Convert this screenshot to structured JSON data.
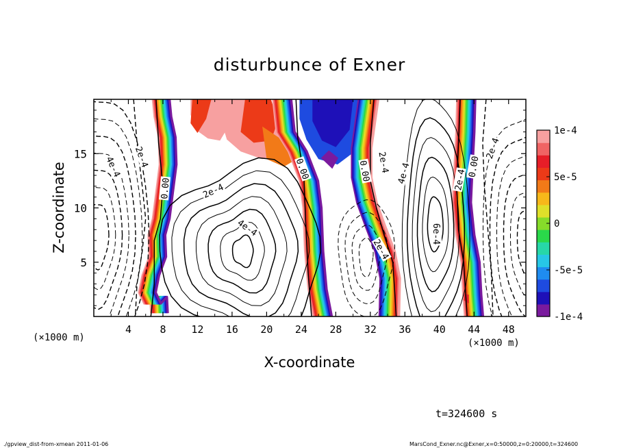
{
  "chart_data": {
    "type": "heatmap",
    "title": "disturbunce of Exner",
    "xlabel": "X-coordinate",
    "ylabel": "Z-coordinate",
    "x_unit_left": "(×1000 m)",
    "x_unit_right": "(×1000 m)",
    "xlim": [
      0,
      50
    ],
    "ylim": [
      0,
      20
    ],
    "x_ticks": [
      4,
      8,
      12,
      16,
      20,
      24,
      28,
      32,
      36,
      40,
      44,
      48
    ],
    "y_ticks": [
      5,
      10,
      15
    ],
    "colorbar": {
      "vmin": -0.0001,
      "vmax": 0.0001,
      "tick_values": [
        0.0001,
        5e-05,
        0,
        -5e-05,
        -0.0001
      ],
      "tick_labels": [
        "1e-4",
        "5e-5",
        "0",
        "-5e-5",
        "-1e-4"
      ],
      "colors": [
        "#7a1a9e",
        "#1e10b8",
        "#1e4be0",
        "#1f8cf0",
        "#27c7e6",
        "#27d7a8",
        "#2ad84a",
        "#86dc2a",
        "#dfe02a",
        "#f7b81a",
        "#f27a18",
        "#ec3a18",
        "#e61e28",
        "#f06464",
        "#f7a0a0"
      ]
    },
    "contour_labels": [
      {
        "text": "4e-4",
        "x": 2.3,
        "z": 13.8,
        "rot": 65
      },
      {
        "text": "2e-4",
        "x": 5.6,
        "z": 14.7,
        "rot": 70
      },
      {
        "text": "0.00",
        "x": 8.2,
        "z": 11.8,
        "rot": -85
      },
      {
        "text": "2e-4",
        "x": 13.8,
        "z": 11.6,
        "rot": -25
      },
      {
        "text": "4e-4",
        "x": 17.8,
        "z": 8.2,
        "rot": 35
      },
      {
        "text": "0.00",
        "x": 24.2,
        "z": 13.6,
        "rot": 70
      },
      {
        "text": "0.00",
        "x": 31.4,
        "z": 13.4,
        "rot": 80
      },
      {
        "text": "2e-4",
        "x": 33.6,
        "z": 14.2,
        "rot": 80
      },
      {
        "text": "4e-4",
        "x": 35.8,
        "z": 13.2,
        "rot": -75
      },
      {
        "text": "2e-4",
        "x": 33.3,
        "z": 6.2,
        "rot": 60
      },
      {
        "text": "6e-4",
        "x": 39.7,
        "z": 7.6,
        "rot": 90
      },
      {
        "text": "2e-4",
        "x": 42.3,
        "z": 12.6,
        "rot": -80
      },
      {
        "text": "0.00",
        "x": 43.9,
        "z": 13.8,
        "rot": -80
      },
      {
        "text": "2e-4",
        "x": 46.1,
        "z": 15.5,
        "rot": -70
      }
    ]
  },
  "time_label": "t=324600 s",
  "footer_left": "./gpview_dist-from-xmean  2011-01-06",
  "footer_right": "MarsCond_Exner.nc@Exner,x=0:50000,z=0:20000,t=324600"
}
